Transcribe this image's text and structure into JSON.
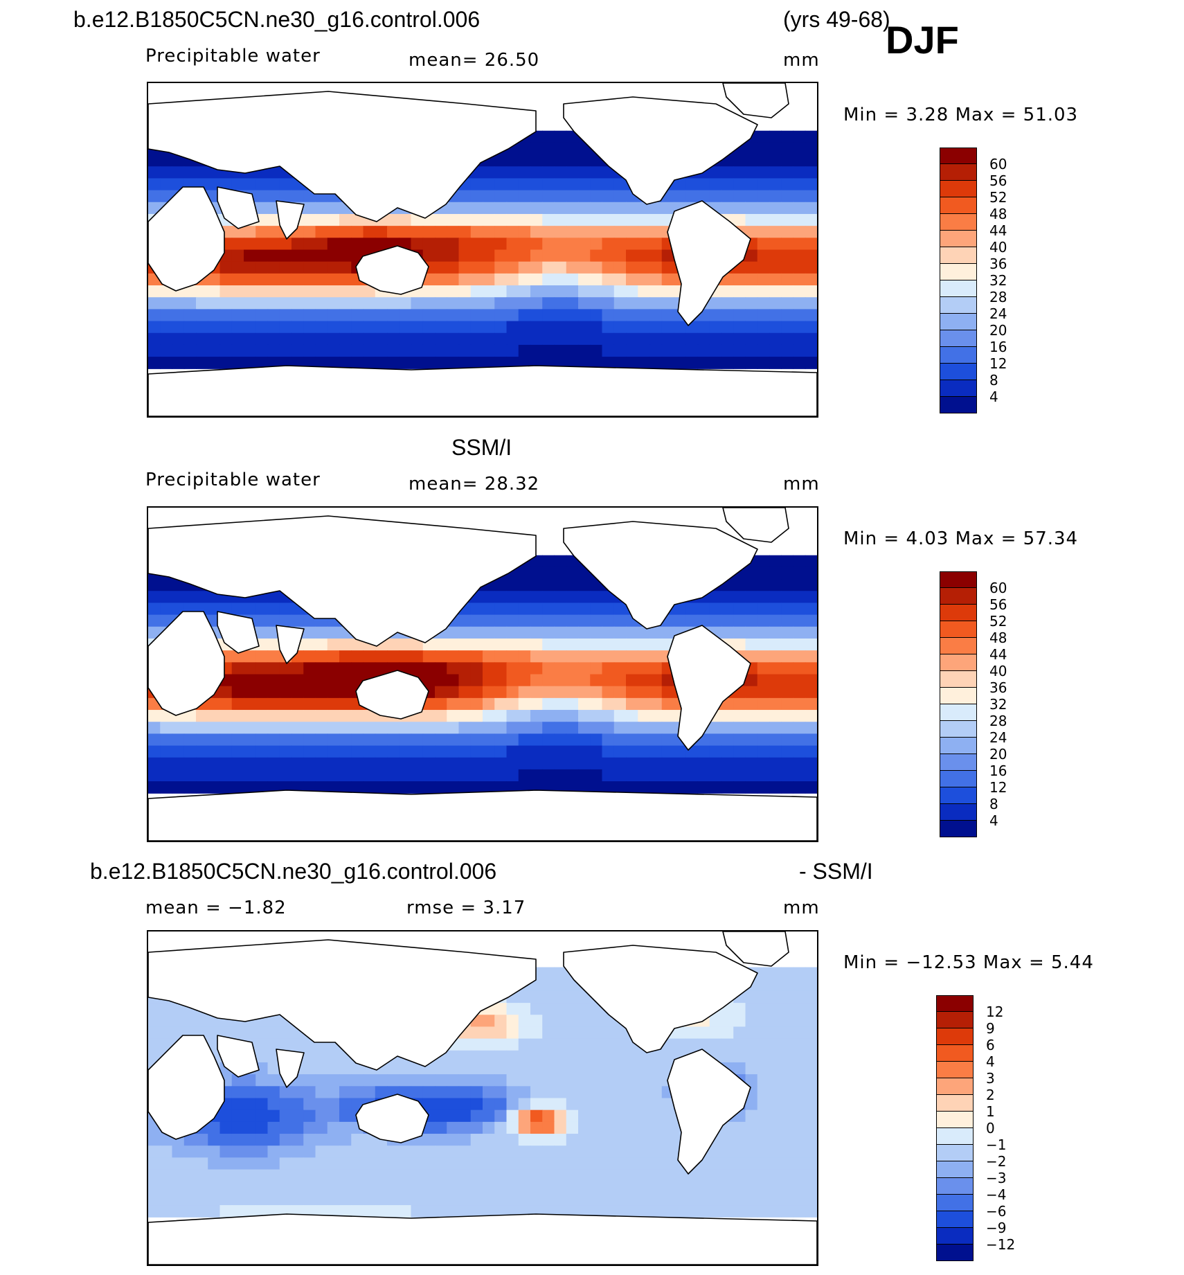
{
  "header": {
    "case_name": "b.e12.B1850C5CN.ne30_g16.control.006",
    "years": "(yrs 49-68)",
    "season": "DJF"
  },
  "panels": [
    {
      "id": "model",
      "variable": "Precipitable water",
      "mean_text": "mean=   26.50",
      "units": "mm",
      "minmax_text": "Min =    3.28 Max =   51.03"
    },
    {
      "id": "obs",
      "title": "SSM/I",
      "variable": "Precipitable water",
      "mean_text": "mean=   28.32",
      "units": "mm",
      "minmax_text": "Min =    4.03 Max =   57.34"
    },
    {
      "id": "diff",
      "title_left": "b.e12.B1850C5CN.ne30_g16.control.006",
      "title_right": "- SSM/I",
      "mean_text": "mean =   −1.82",
      "rmse_text": "rmse =    3.17",
      "units": "mm",
      "minmax_text": "Min = −12.53 Max =    5.44"
    }
  ],
  "colorbars": {
    "abs": {
      "labels": [
        "60",
        "56",
        "52",
        "48",
        "44",
        "40",
        "36",
        "32",
        "28",
        "24",
        "20",
        "16",
        "12",
        "8",
        "4"
      ],
      "colors": [
        "#8b0000",
        "#b51f05",
        "#dd3a0a",
        "#f15a20",
        "#fa7d45",
        "#fda57a",
        "#fed3b6",
        "#fff0dc",
        "#d9ebfb",
        "#b3cdf6",
        "#8eb0f2",
        "#6a90ec",
        "#4271e6",
        "#1d4fdc",
        "#0a2cc0",
        "#00108f"
      ]
    },
    "diff": {
      "labels": [
        "12",
        "9",
        "6",
        "4",
        "3",
        "2",
        "1",
        "0",
        "−1",
        "−2",
        "−3",
        "−4",
        "−6",
        "−9",
        "−12"
      ],
      "colors": [
        "#8b0000",
        "#b51f05",
        "#dd3a0a",
        "#f15a20",
        "#fa7d45",
        "#fda57a",
        "#fed3b6",
        "#fff0dc",
        "#d9ebfb",
        "#b3cdf6",
        "#8eb0f2",
        "#6a90ec",
        "#4271e6",
        "#1d4fdc",
        "#0a2cc0",
        "#00108f"
      ]
    }
  },
  "chart_data": [
    {
      "type": "heatmap",
      "title": "Precipitable water (model, DJF)",
      "units": "mm",
      "mean": 26.5,
      "min": 3.28,
      "max": 51.03,
      "contour_levels": [
        4,
        8,
        12,
        16,
        20,
        24,
        28,
        32,
        36,
        40,
        44,
        48,
        52,
        56,
        60
      ]
    },
    {
      "type": "heatmap",
      "title": "Precipitable water (SSM/I, DJF)",
      "units": "mm",
      "mean": 28.32,
      "min": 4.03,
      "max": 57.34,
      "contour_levels": [
        4,
        8,
        12,
        16,
        20,
        24,
        28,
        32,
        36,
        40,
        44,
        48,
        52,
        56,
        60
      ]
    },
    {
      "type": "heatmap",
      "title": "Model - SSM/I difference",
      "units": "mm",
      "mean": -1.82,
      "rmse": 3.17,
      "min": -12.53,
      "max": 5.44,
      "contour_levels": [
        -12,
        -9,
        -6,
        -4,
        -3,
        -2,
        -1,
        0,
        1,
        2,
        3,
        4,
        6,
        9,
        12
      ]
    }
  ]
}
